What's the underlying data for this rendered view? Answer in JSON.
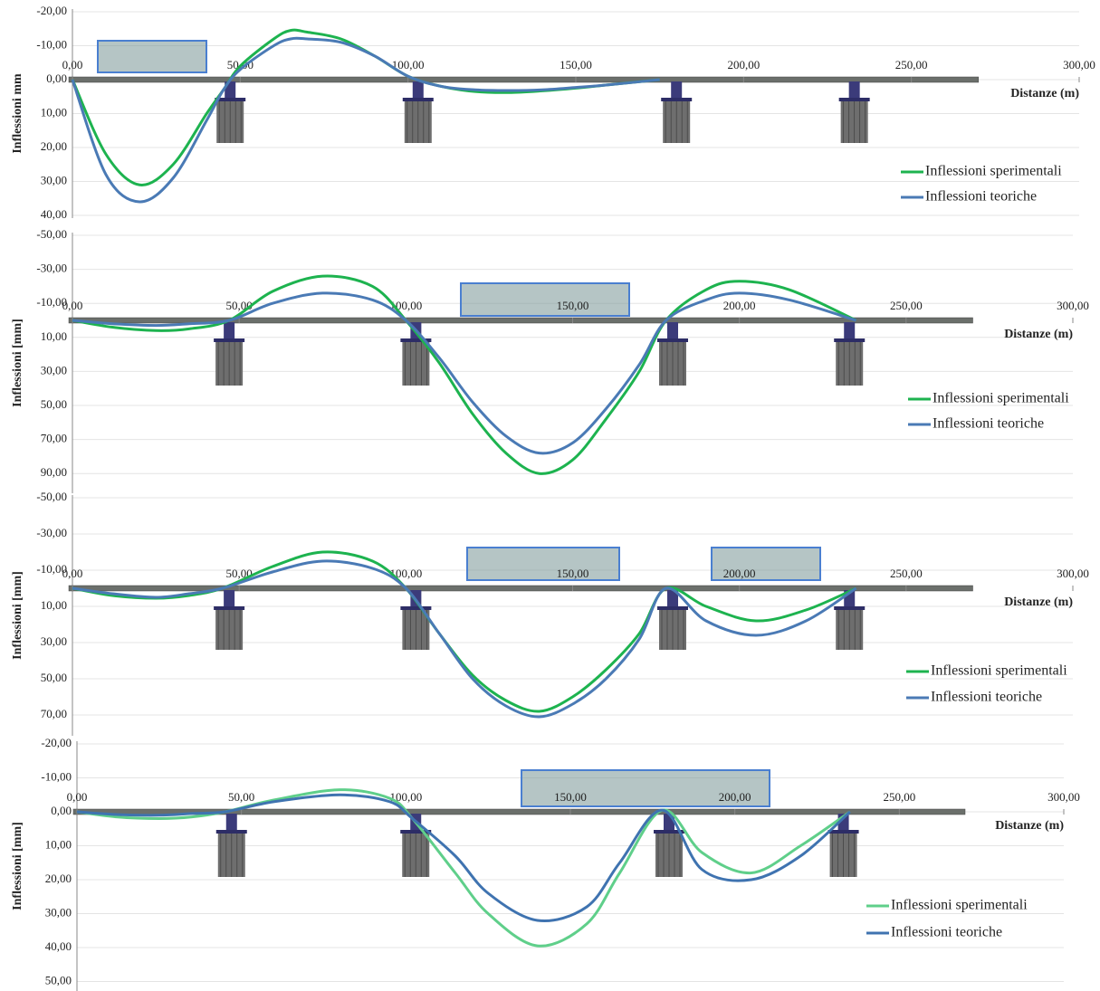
{
  "chart_data": [
    {
      "type": "line",
      "y_label": "Inflessioni  mm",
      "x_label": "Distanze (m)",
      "y_inverted": true,
      "grid": true,
      "xlim": [
        0,
        300
      ],
      "ylim": [
        -20,
        40
      ],
      "xticks": [
        {
          "value": 0,
          "label": "0,00"
        },
        {
          "value": 50,
          "label": "50,00"
        },
        {
          "value": 100,
          "label": "100,00"
        },
        {
          "value": 150,
          "label": "150,00"
        },
        {
          "value": 200,
          "label": "200,00"
        },
        {
          "value": 250,
          "label": "250,00"
        },
        {
          "value": 300,
          "label": "300,00"
        }
      ],
      "yticks": [
        {
          "value": -20,
          "label": "-20,00"
        },
        {
          "value": -10,
          "label": "-10,00"
        },
        {
          "value": 0,
          "label": "0,00"
        },
        {
          "value": 10,
          "label": "10,00"
        },
        {
          "value": 20,
          "label": "20,00"
        },
        {
          "value": 30,
          "label": "30,00"
        },
        {
          "value": 40,
          "label": "40,00"
        }
      ],
      "x": [
        0,
        10,
        20,
        30,
        40,
        45,
        50,
        60,
        65,
        70,
        80,
        90,
        100,
        110,
        120,
        130,
        140,
        150,
        160,
        175
      ],
      "series": [
        {
          "name": "Inflessioni sperimentali",
          "color": "#1db34f",
          "values": [
            0,
            22,
            31,
            25,
            10,
            3,
            -4,
            -12,
            -14.5,
            -14,
            -12,
            -7,
            -1,
            2,
            3.5,
            3.8,
            3.3,
            2.5,
            1.5,
            0
          ]
        },
        {
          "name": "Inflessioni teoriche",
          "color": "#4a7ab5",
          "values": [
            0,
            28,
            36,
            29,
            12,
            3,
            -3,
            -10,
            -12,
            -12,
            -11,
            -7,
            -1,
            2,
            3,
            3.2,
            3,
            2.3,
            1.5,
            0
          ]
        }
      ]
    },
    {
      "type": "line",
      "y_label": "Inflessioni  [mm]",
      "x_label": "Distanze (m)",
      "y_inverted": true,
      "grid": true,
      "xlim": [
        0,
        300
      ],
      "ylim": [
        -50,
        100
      ],
      "xticks": [
        {
          "value": 0,
          "label": "0,00"
        },
        {
          "value": 50,
          "label": "50,00"
        },
        {
          "value": 100,
          "label": "100,00"
        },
        {
          "value": 150,
          "label": "150,00"
        },
        {
          "value": 200,
          "label": "200,00"
        },
        {
          "value": 250,
          "label": "250,00"
        },
        {
          "value": 300,
          "label": "300,00"
        }
      ],
      "yticks": [
        {
          "value": -50,
          "label": "-50,00"
        },
        {
          "value": -30,
          "label": "-30,00"
        },
        {
          "value": -10,
          "label": "-10,00"
        },
        {
          "value": 10,
          "label": "10,00"
        },
        {
          "value": 30,
          "label": "30,00"
        },
        {
          "value": 50,
          "label": "50,00"
        },
        {
          "value": 70,
          "label": "70,00"
        },
        {
          "value": 90,
          "label": "90,00"
        }
      ],
      "x": [
        0,
        12,
        25,
        35,
        47,
        60,
        75,
        90,
        100,
        110,
        120,
        130,
        140,
        150,
        160,
        170,
        178,
        190,
        200,
        215,
        235
      ],
      "series": [
        {
          "name": "Inflessioni sperimentali",
          "color": "#1db34f",
          "values": [
            0,
            4,
            6,
            5,
            0,
            -17,
            -26,
            -20,
            0,
            25,
            55,
            78,
            90,
            82,
            58,
            30,
            0,
            -18,
            -23,
            -18,
            0
          ]
        },
        {
          "name": "Inflessioni teoriche",
          "color": "#4a7ab5",
          "values": [
            0,
            2,
            3,
            2,
            0,
            -10,
            -16,
            -12,
            0,
            22,
            48,
            68,
            78,
            72,
            52,
            26,
            0,
            -12,
            -16,
            -12,
            0
          ]
        }
      ]
    },
    {
      "type": "line",
      "y_label": "Inflessioni  [mm]",
      "x_label": "Distanze (m)",
      "y_inverted": true,
      "grid": true,
      "xlim": [
        0,
        300
      ],
      "ylim": [
        -50,
        80
      ],
      "xticks": [
        {
          "value": 0,
          "label": "0,00"
        },
        {
          "value": 50,
          "label": "50,00"
        },
        {
          "value": 100,
          "label": "100,00"
        },
        {
          "value": 150,
          "label": "150,00"
        },
        {
          "value": 200,
          "label": "200,00"
        },
        {
          "value": 250,
          "label": "250,00"
        },
        {
          "value": 300,
          "label": "300,00"
        }
      ],
      "yticks": [
        {
          "value": -50,
          "label": "-50,00"
        },
        {
          "value": -30,
          "label": "-30,00"
        },
        {
          "value": -10,
          "label": "-10,00"
        },
        {
          "value": 10,
          "label": "10,00"
        },
        {
          "value": 30,
          "label": "30,00"
        },
        {
          "value": 50,
          "label": "50,00"
        },
        {
          "value": 70,
          "label": "70,00"
        }
      ],
      "x": [
        0,
        12,
        25,
        35,
        45,
        60,
        75,
        90,
        100,
        110,
        120,
        130,
        140,
        150,
        160,
        170,
        178,
        190,
        205,
        220,
        235
      ],
      "series": [
        {
          "name": "Inflessioni sperimentali",
          "color": "#1db34f",
          "values": [
            0,
            4,
            5.5,
            4,
            0,
            -12,
            -20,
            -15,
            0,
            25,
            48,
            62,
            68,
            60,
            45,
            25,
            0,
            10,
            18,
            12,
            0
          ]
        },
        {
          "name": "Inflessioni teoriche",
          "color": "#4a7ab5",
          "values": [
            0,
            3,
            5,
            3,
            0,
            -9,
            -15,
            -11,
            0,
            25,
            50,
            65,
            71,
            64,
            50,
            28,
            0,
            18,
            26,
            18,
            0
          ]
        }
      ]
    },
    {
      "type": "line",
      "y_label": "Inflessioni  [mm]",
      "x_label": "Distanze (m)",
      "y_inverted": true,
      "grid": true,
      "xlim": [
        0,
        300
      ],
      "ylim": [
        -20,
        52
      ],
      "xticks": [
        {
          "value": 0,
          "label": "0,00"
        },
        {
          "value": 50,
          "label": "50,00"
        },
        {
          "value": 100,
          "label": "100,00"
        },
        {
          "value": 150,
          "label": "150,00"
        },
        {
          "value": 200,
          "label": "200,00"
        },
        {
          "value": 250,
          "label": "250,00"
        },
        {
          "value": 300,
          "label": "300,00"
        }
      ],
      "yticks": [
        {
          "value": -20,
          "label": "-20,00"
        },
        {
          "value": -10,
          "label": "-10,00"
        },
        {
          "value": 0,
          "label": "0,00"
        },
        {
          "value": 10,
          "label": "10,00"
        },
        {
          "value": 20,
          "label": "20,00"
        },
        {
          "value": 30,
          "label": "30,00"
        },
        {
          "value": 40,
          "label": "40,00"
        },
        {
          "value": 50,
          "label": "50,00"
        }
      ],
      "x": [
        0,
        12,
        25,
        35,
        45,
        60,
        80,
        95,
        102,
        115,
        125,
        140,
        155,
        165,
        178,
        190,
        205,
        220,
        235
      ],
      "series": [
        {
          "name": "Inflessioni sperimentali",
          "color": "#5fcf8a",
          "values": [
            0,
            1.5,
            2,
            1.5,
            0,
            -3.5,
            -6.5,
            -4,
            2,
            18,
            30,
            39.5,
            33,
            18,
            -0.5,
            12,
            18,
            10,
            0
          ]
        },
        {
          "name": "Inflessioni teoriche",
          "color": "#3f73b0",
          "values": [
            0,
            0.8,
            1,
            0.5,
            0,
            -3,
            -5,
            -3,
            2,
            13,
            24,
            32,
            28,
            15,
            -0.5,
            17,
            20,
            13,
            0
          ]
        }
      ]
    }
  ]
}
